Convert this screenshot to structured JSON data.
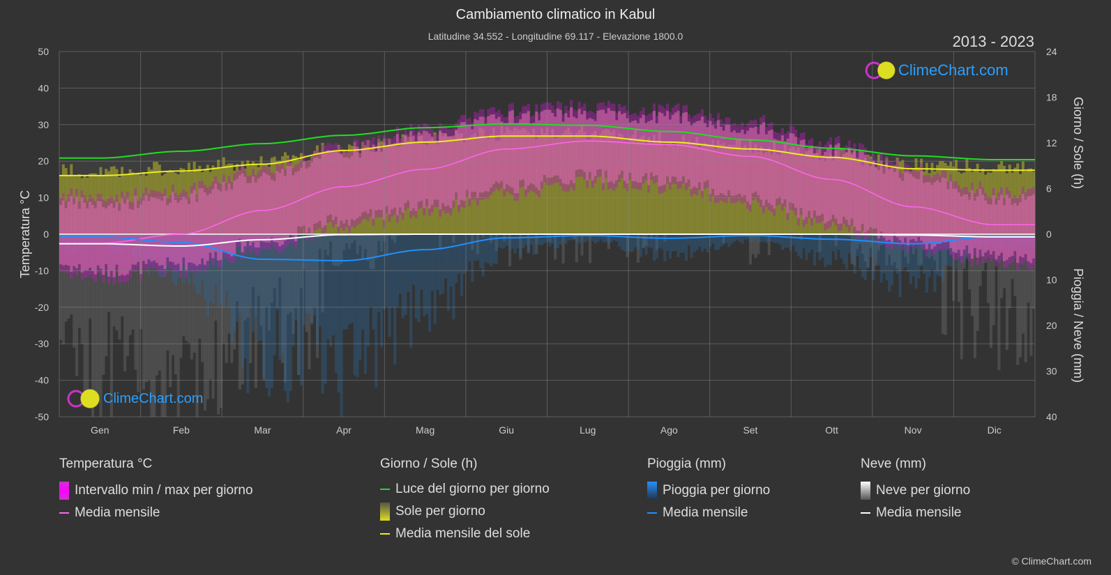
{
  "header": {
    "title": "Cambiamento climatico in Kabul",
    "subtitle": "Latitudine 34.552 - Longitudine 69.117 - Elevazione 1800.0",
    "years": "2013 - 2023"
  },
  "branding": {
    "logo_text": "ClimeChart.com",
    "copyright": "© ClimeChart.com"
  },
  "chart_data": {
    "type": "area",
    "categories": [
      "Gen",
      "Feb",
      "Mar",
      "Apr",
      "Mag",
      "Giu",
      "Lug",
      "Ago",
      "Set",
      "Ott",
      "Nov",
      "Dic"
    ],
    "left_axis": {
      "label": "Temperatura °C",
      "ticks": [
        50,
        40,
        30,
        20,
        10,
        0,
        -10,
        -20,
        -30,
        -40,
        -50
      ],
      "range": [
        -50,
        50
      ]
    },
    "right_axis_top": {
      "label": "Giorno / Sole (h)",
      "ticks": [
        24,
        18,
        12,
        6,
        0
      ],
      "range": [
        0,
        24
      ]
    },
    "right_axis_bottom": {
      "label": "Pioggia / Neve (mm)",
      "ticks": [
        0,
        10,
        20,
        30,
        40
      ],
      "range": [
        0,
        40
      ]
    },
    "series": [
      {
        "name": "Media mensile temperatura",
        "unit": "°C",
        "color": "#ff66ee",
        "values": [
          -2.5,
          0,
          6.5,
          13,
          17.8,
          23.3,
          25.5,
          24.5,
          21.3,
          15,
          7.5,
          2.6
        ]
      },
      {
        "name": "Intervallo max per giorno",
        "unit": "°C",
        "values": [
          8,
          10,
          16,
          22,
          27,
          32,
          33,
          32,
          29,
          23,
          16,
          10
        ]
      },
      {
        "name": "Intervallo min per giorno",
        "unit": "°C",
        "values": [
          -10,
          -8,
          -2,
          4,
          8,
          13,
          16,
          15,
          10,
          4,
          -2,
          -6
        ]
      },
      {
        "name": "Luce del giorno per giorno",
        "unit": "h",
        "color": "#22dd22",
        "values": [
          10.0,
          10.9,
          11.9,
          13.0,
          14.0,
          14.5,
          14.3,
          13.5,
          12.4,
          11.3,
          10.3,
          9.8
        ]
      },
      {
        "name": "Media mensile del sole",
        "unit": "h",
        "color": "#eeee22",
        "values": [
          7.7,
          8.3,
          9.2,
          11.0,
          12.1,
          12.9,
          12.9,
          12.1,
          11.2,
          10.1,
          8.6,
          8.4
        ]
      },
      {
        "name": "Media mensile pioggia",
        "unit": "mm",
        "color": "#1e90ff",
        "values": [
          0.6,
          1.8,
          5.5,
          5.8,
          3.4,
          0.8,
          0.3,
          0.9,
          0.3,
          1.1,
          2.1,
          0.5
        ]
      },
      {
        "name": "Media mensile neve",
        "unit": "mm",
        "color": "#ffffff",
        "values": [
          2.1,
          2.6,
          1.2,
          0.1,
          0,
          0,
          0,
          0,
          0,
          0,
          0.2,
          0.6
        ]
      }
    ]
  },
  "legend": {
    "temp": {
      "title": "Temperatura °C",
      "items": [
        "Intervallo min / max per giorno",
        "Media mensile"
      ]
    },
    "sun": {
      "title": "Giorno / Sole (h)",
      "items": [
        "Luce del giorno per giorno",
        "Sole per giorno",
        "Media mensile del sole"
      ]
    },
    "rain": {
      "title": "Pioggia (mm)",
      "items": [
        "Pioggia per giorno",
        "Media mensile"
      ]
    },
    "snow": {
      "title": "Neve (mm)",
      "items": [
        "Neve per giorno",
        "Media mensile"
      ]
    }
  }
}
